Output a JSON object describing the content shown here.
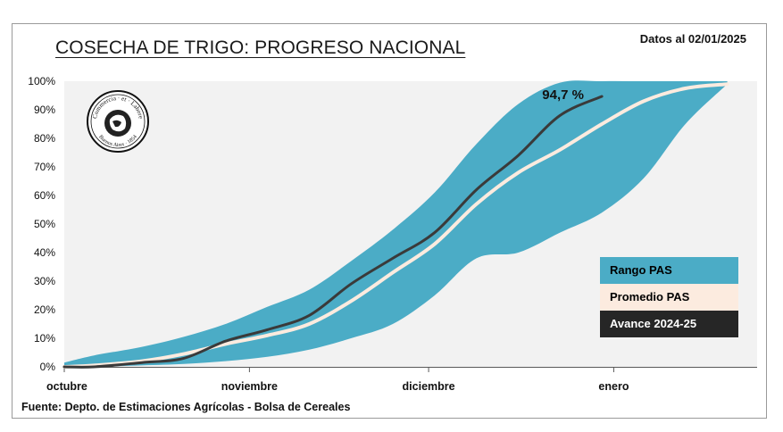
{
  "header": {
    "title": "COSECHA DE TRIGO: PROGRESO NACIONAL",
    "date_note": "Datos al 02/01/2025"
  },
  "footer": {
    "source": "Fuente: Depto. de Estimaciones Agrícolas - Bolsa de Cereales"
  },
  "logo": {
    "text_top": "Commercia · et · Labore",
    "text_bottom": "Buenos Aires · 1854"
  },
  "legend": [
    {
      "label": "Rango PAS",
      "color": "#4bacc6",
      "text_color": "#000000"
    },
    {
      "label": "Promedio PAS",
      "color": "#fcebdf",
      "text_color": "#000000"
    },
    {
      "label": "Avance 2024-25",
      "color": "#262626",
      "text_color": "#ffffff"
    }
  ],
  "chart_data": {
    "type": "area",
    "x_unit": "days from start of October",
    "x_ticks": [
      {
        "x": 0,
        "label": "octubre"
      },
      {
        "x": 31,
        "label": "noviembre"
      },
      {
        "x": 61,
        "label": "diciembre"
      },
      {
        "x": 92,
        "label": "enero"
      }
    ],
    "xlim": [
      0,
      116
    ],
    "ylim": [
      0,
      100
    ],
    "y_ticks": [
      "0%",
      "10%",
      "20%",
      "30%",
      "40%",
      "50%",
      "60%",
      "70%",
      "80%",
      "90%",
      "100%"
    ],
    "grid": false,
    "legend_position": "bottom-right",
    "series": [
      {
        "name": "Rango PAS",
        "kind": "band",
        "color": "#4bacc6",
        "x": [
          0,
          5,
          13,
          20,
          27,
          34,
          41,
          48,
          55,
          62,
          69,
          76,
          83,
          90,
          97,
          104,
          111
        ],
        "upper": [
          1.5,
          4,
          7,
          10.5,
          15,
          21,
          27,
          37,
          48,
          61,
          78,
          92,
          99.5,
          100,
          100,
          100,
          100
        ],
        "lower": [
          0,
          0,
          0.5,
          1,
          2,
          3.5,
          6,
          10,
          15,
          25,
          38,
          40,
          47,
          54,
          66,
          85,
          99
        ]
      },
      {
        "name": "Promedio PAS",
        "kind": "line",
        "color": "#fcebdf",
        "x": [
          0,
          5,
          13,
          20,
          27,
          34,
          41,
          48,
          55,
          62,
          69,
          76,
          83,
          90,
          97,
          104,
          111
        ],
        "values": [
          0,
          0.5,
          2,
          4.5,
          8,
          11,
          15,
          23,
          33,
          43,
          57,
          68,
          76,
          85,
          93,
          97.5,
          99
        ]
      },
      {
        "name": "Avance 2024-25",
        "kind": "line",
        "color": "#3a3a3a",
        "x": [
          0,
          5,
          13,
          20,
          27,
          34,
          41,
          48,
          55,
          62,
          69,
          76,
          83,
          90
        ],
        "values": [
          0,
          0,
          1.5,
          3,
          9,
          13,
          18,
          29,
          38,
          47,
          62,
          74,
          88,
          94.7
        ]
      }
    ],
    "annotations": [
      {
        "text": "94,7 %",
        "x": 87,
        "y": 95.6
      }
    ]
  }
}
